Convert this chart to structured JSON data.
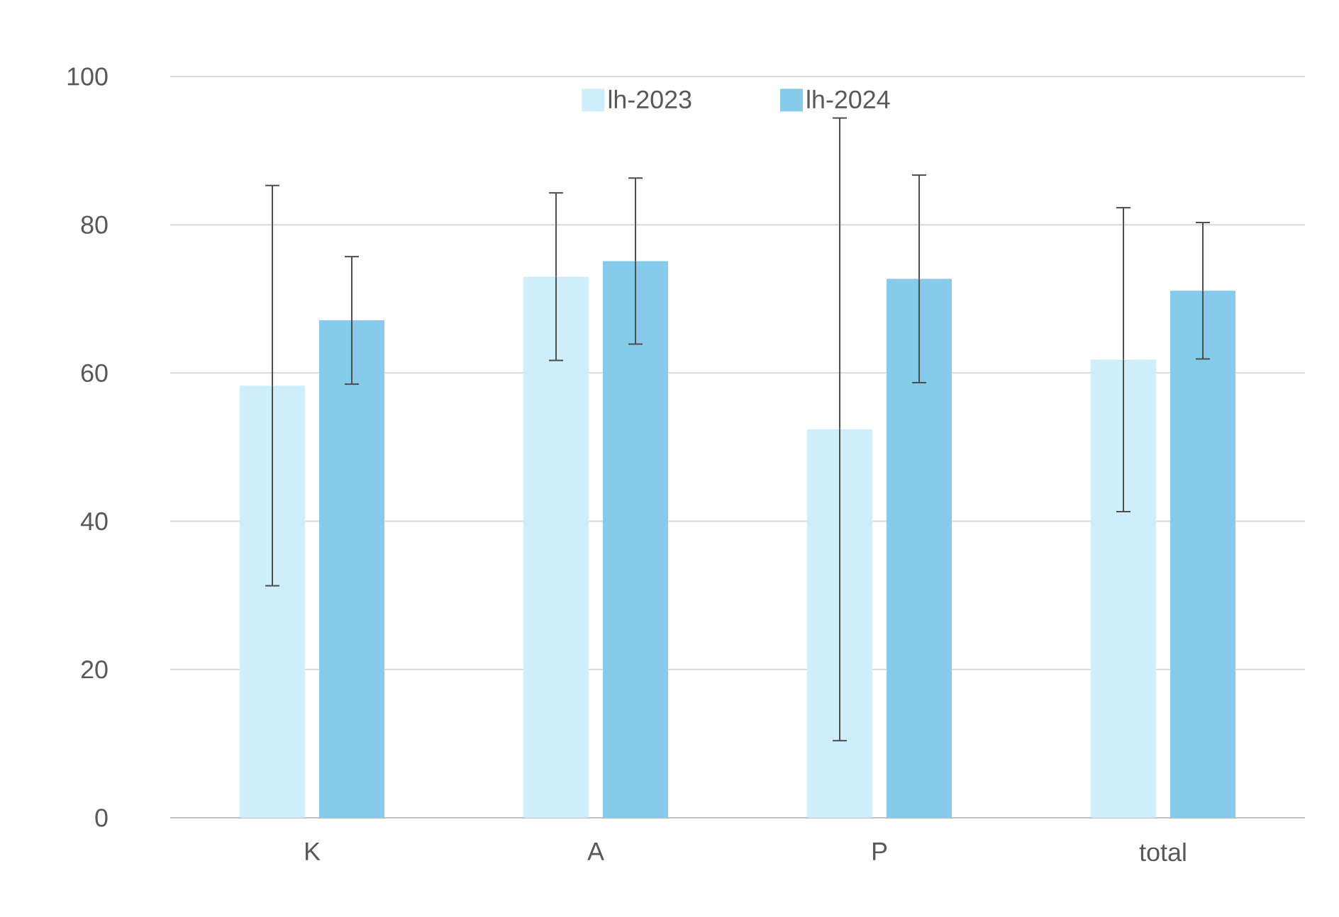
{
  "chart_data": {
    "type": "bar",
    "categories": [
      "K",
      "A",
      "P",
      "total"
    ],
    "series": [
      {
        "name": "lh-2023",
        "color": "#cdeefa",
        "values": [
          58.3,
          73.0,
          52.4,
          61.8
        ],
        "errors": [
          27,
          11.3,
          42,
          20.5
        ]
      },
      {
        "name": "lh-2024",
        "color": "#86cbea",
        "values": [
          67.1,
          75.1,
          72.7,
          71.1
        ],
        "errors": [
          8.6,
          11.2,
          14,
          9.2
        ]
      }
    ],
    "ylim": [
      0,
      100
    ],
    "yticks": [
      0,
      20,
      40,
      60,
      80,
      100
    ],
    "grid": "y",
    "legend": "top"
  }
}
